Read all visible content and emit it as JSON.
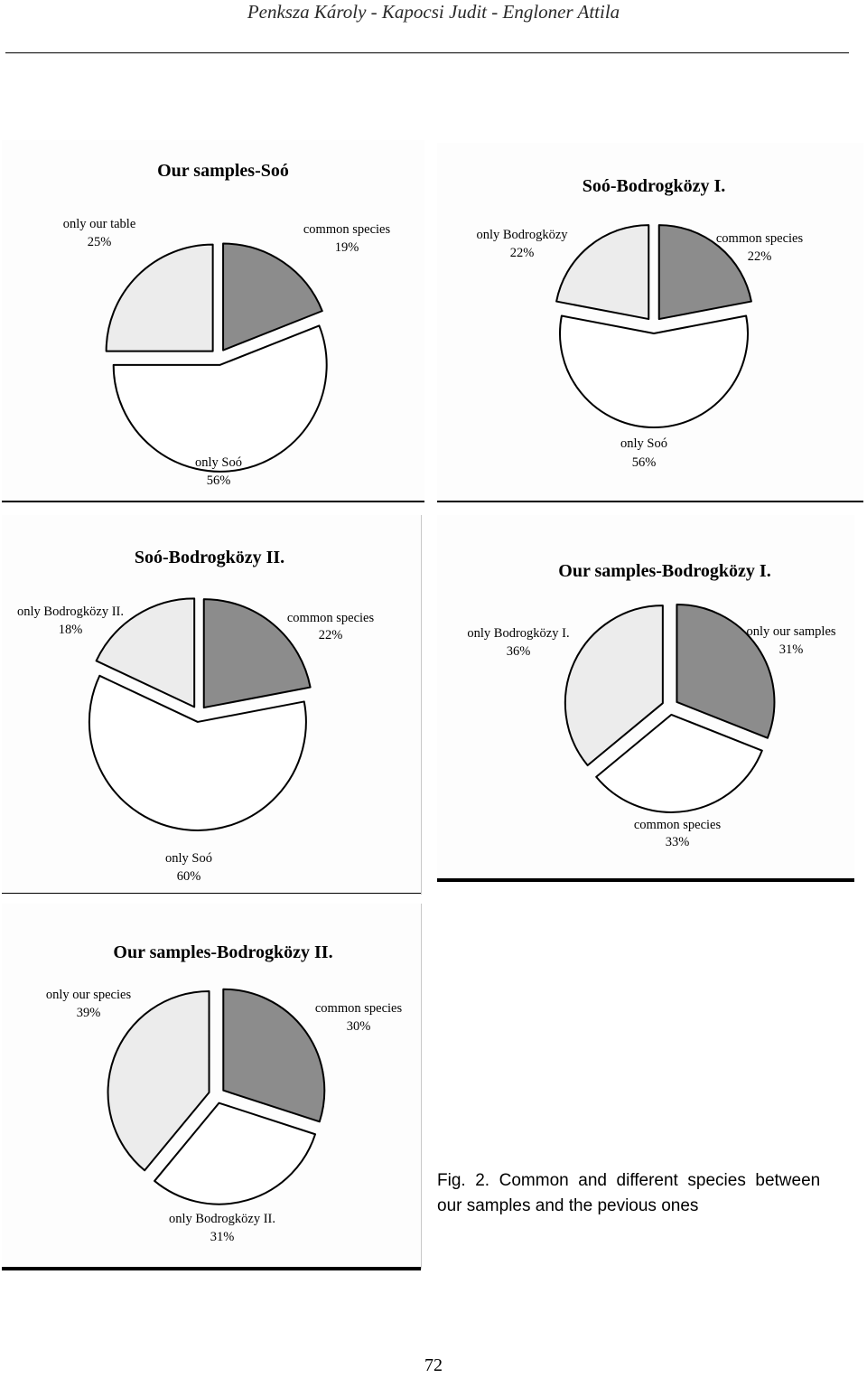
{
  "header": {
    "running_title": "Penksza Károly - Kapocsi Judit - Engloner Attila"
  },
  "figure": {
    "caption_line1": "Fig.  2.  Common  and  different  species  between",
    "caption_line2": "our samples and the pevious ones"
  },
  "page_number": "72",
  "colors": {
    "dark_slice": "#8c8c8c",
    "light_slice": "#ececec",
    "white_slice": "#ffffff"
  },
  "chart_data": [
    {
      "type": "pie",
      "title": "Our samples-Soó",
      "slices": [
        {
          "label": "common species",
          "percent_text": "19%",
          "value": 19,
          "fill": "dark"
        },
        {
          "label": "only Soó",
          "percent_text": "56%",
          "value": 56,
          "fill": "white"
        },
        {
          "label": "only our table",
          "percent_text": "25%",
          "value": 25,
          "fill": "light"
        }
      ]
    },
    {
      "type": "pie",
      "title": "Soó-Bodrogközy I.",
      "slices": [
        {
          "label": "common species",
          "percent_text": "22%",
          "value": 22,
          "fill": "dark"
        },
        {
          "label": "only Soó",
          "percent_text": "56%",
          "value": 56,
          "fill": "white"
        },
        {
          "label": "only Bodrogközy",
          "percent_text": "22%",
          "value": 22,
          "fill": "light"
        }
      ]
    },
    {
      "type": "pie",
      "title": "Soó-Bodrogközy II.",
      "slices": [
        {
          "label": "common species",
          "percent_text": "22%",
          "value": 22,
          "fill": "dark"
        },
        {
          "label": "only Soó",
          "percent_text": "60%",
          "value": 60,
          "fill": "white"
        },
        {
          "label": "only Bodrogközy II.",
          "percent_text": "18%",
          "value": 18,
          "fill": "light"
        }
      ]
    },
    {
      "type": "pie",
      "title": "Our samples-Bodrogközy I.",
      "slices": [
        {
          "label": "only our samples",
          "percent_text": "31%",
          "value": 31,
          "fill": "dark"
        },
        {
          "label": "common species",
          "percent_text": "33%",
          "value": 33,
          "fill": "white"
        },
        {
          "label": "only Bodrogközy I.",
          "percent_text": "36%",
          "value": 36,
          "fill": "light"
        }
      ]
    },
    {
      "type": "pie",
      "title": "Our samples-Bodrogközy II.",
      "slices": [
        {
          "label": "common species",
          "percent_text": "30%",
          "value": 30,
          "fill": "dark"
        },
        {
          "label": "only Bodrogközy II.",
          "percent_text": "31%",
          "value": 31,
          "fill": "white"
        },
        {
          "label": "only our species",
          "percent_text": "39%",
          "value": 39,
          "fill": "light"
        }
      ]
    }
  ]
}
